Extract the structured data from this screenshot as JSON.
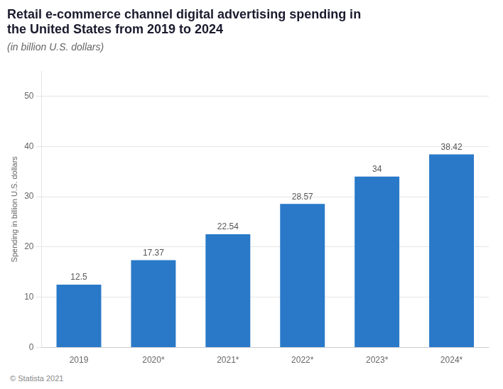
{
  "chart_data": {
    "type": "bar",
    "title": "Retail e-commerce channel digital advertising spending in\nthe United States from 2019 to 2024",
    "subtitle": "(in billion U.S. dollars)",
    "categories": [
      "2019",
      "2020*",
      "2021*",
      "2022*",
      "2023*",
      "2024*"
    ],
    "values": [
      12.5,
      17.37,
      22.54,
      28.57,
      34,
      38.42
    ],
    "color": "#2979c8",
    "ylabel": "Spending in billion U.S. dollars",
    "ylim": [
      0,
      55
    ],
    "yticks": [
      0,
      10,
      20,
      30,
      40,
      50
    ],
    "grid": true,
    "data_labels": true,
    "footer": "© Statista 2021"
  }
}
